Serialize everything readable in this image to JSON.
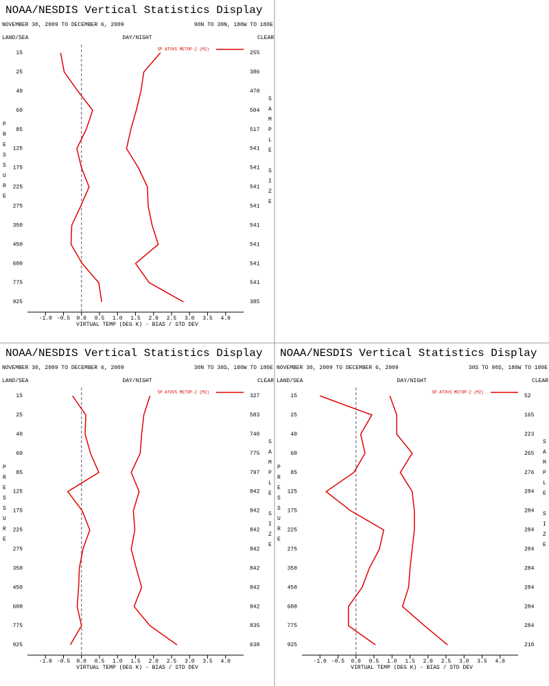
{
  "chart_data": [
    {
      "type": "line",
      "title": "NOAA/NESDIS Vertical Statistics Display",
      "date_range": "NOVEMBER 30, 2009 TO DECEMBER 6, 2009",
      "region": "90N TO 30N, 180W TO 180E",
      "left_label": "LAND/SEA",
      "center_label": "DAY/NIGHT",
      "right_label": "CLEAR",
      "y_label": "PRESSURE",
      "y2_label": "SAMPLE SIZE",
      "x_label": "VIRTUAL TEMP (DEG K) - BIAS / STD DEV",
      "legend": "SP ATOVS METOP-2 (M2)",
      "color": "#e00000",
      "categories": [
        "15",
        "25",
        "40",
        "60",
        "85",
        "125",
        "175",
        "225",
        "275",
        "350",
        "450",
        "600",
        "775",
        "925"
      ],
      "sample_size": [
        255,
        386,
        470,
        504,
        517,
        541,
        541,
        541,
        541,
        541,
        541,
        541,
        541,
        385
      ],
      "series": [
        {
          "values": [
            -0.58,
            -0.48,
            -0.1,
            0.31,
            0.13,
            -0.13,
            0.0,
            0.21,
            -0.02,
            -0.27,
            -0.29,
            0.02,
            0.48,
            0.56
          ]
        },
        {
          "values": [
            2.19,
            1.73,
            1.65,
            1.52,
            1.37,
            1.25,
            1.58,
            1.83,
            1.85,
            1.96,
            2.13,
            1.5,
            1.88,
            2.83
          ]
        }
      ],
      "xlim": [
        -1.5,
        4.5
      ],
      "xticks": [
        {
          "value": -1,
          "label": "-1.0"
        },
        {
          "value": -0.5,
          "label": "-0.5"
        },
        {
          "value": 0,
          "label": "0.0"
        },
        {
          "value": 0.5,
          "label": "0.5"
        },
        {
          "value": 1,
          "label": "1.0"
        },
        {
          "value": 1.5,
          "label": "1.5"
        },
        {
          "value": 2,
          "label": "2.0"
        },
        {
          "value": 2.5,
          "label": "2.5"
        },
        {
          "value": 3,
          "label": "3.0"
        },
        {
          "value": 3.5,
          "label": "3.5"
        },
        {
          "value": 4,
          "label": "4.0"
        }
      ]
    },
    {
      "type": "line",
      "title": "NOAA/NESDIS Vertical Statistics Display",
      "date_range": "NOVEMBER 30, 2009 TO DECEMBER 6, 2009",
      "region": "30N TO 30S, 180W TO 180E",
      "left_label": "LAND/SEA",
      "center_label": "DAY/NIGHT",
      "right_label": "CLEAR",
      "y_label": "PRESSURE",
      "y2_label": "SAMPLE SIZE",
      "x_label": "VIRTUAL TEMP (DEG K) - BIAS / STD DEV",
      "legend": "SP ATOVS METOP-2 (M2)",
      "color": "#e00000",
      "categories": [
        "15",
        "25",
        "40",
        "60",
        "85",
        "125",
        "175",
        "225",
        "275",
        "350",
        "450",
        "600",
        "775",
        "925"
      ],
      "sample_size": [
        327,
        583,
        740,
        775,
        797,
        842,
        842,
        842,
        842,
        842,
        842,
        842,
        835,
        638
      ],
      "series": [
        {
          "values": [
            -0.25,
            0.12,
            0.1,
            0.25,
            0.48,
            -0.38,
            0.02,
            0.23,
            0.04,
            -0.06,
            -0.08,
            -0.12,
            0.0,
            -0.31
          ]
        },
        {
          "values": [
            1.9,
            1.73,
            1.67,
            1.63,
            1.38,
            1.6,
            1.44,
            1.48,
            1.38,
            1.52,
            1.67,
            1.46,
            1.9,
            2.65
          ]
        }
      ],
      "xlim": [
        -1.5,
        4.5
      ],
      "xticks": [
        {
          "value": -1,
          "label": "-1.0"
        },
        {
          "value": -0.5,
          "label": "-0.5"
        },
        {
          "value": 0,
          "label": "0.0"
        },
        {
          "value": 0.5,
          "label": "0.5"
        },
        {
          "value": 1,
          "label": "1.0"
        },
        {
          "value": 1.5,
          "label": "1.5"
        },
        {
          "value": 2,
          "label": "2.0"
        },
        {
          "value": 2.5,
          "label": "2.5"
        },
        {
          "value": 3,
          "label": "3.0"
        },
        {
          "value": 3.5,
          "label": "3.5"
        },
        {
          "value": 4,
          "label": "4.0"
        }
      ]
    },
    {
      "type": "line",
      "title": "NOAA/NESDIS Vertical Statistics Display",
      "date_range": "NOVEMBER 30, 2009 TO DECEMBER 6, 2009",
      "region": "30S TO 90S, 180W TO 180E",
      "left_label": "LAND/SEA",
      "center_label": "DAY/NIGHT",
      "right_label": "CLEAR",
      "y_label": "PRESSURE",
      "y2_label": "SAMPLE SIZE",
      "x_label": "VIRTUAL TEMP (DEG K) - BIAS / STD DEV",
      "legend": "SP ATOVS METOP-2 (M2)",
      "color": "#e00000",
      "categories": [
        "15",
        "25",
        "40",
        "60",
        "85",
        "125",
        "175",
        "225",
        "275",
        "350",
        "450",
        "600",
        "775",
        "925"
      ],
      "sample_size": [
        52,
        165,
        223,
        265,
        276,
        284,
        284,
        284,
        284,
        284,
        284,
        284,
        284,
        210
      ],
      "series": [
        {
          "values": [
            -1.0,
            0.44,
            0.13,
            0.25,
            -0.06,
            -0.83,
            -0.15,
            0.77,
            0.65,
            0.37,
            0.17,
            -0.21,
            -0.21,
            0.54
          ]
        },
        {
          "values": [
            0.94,
            1.13,
            1.13,
            1.56,
            1.23,
            1.56,
            1.62,
            1.62,
            1.56,
            1.5,
            1.46,
            1.29,
            1.9,
            2.54
          ]
        }
      ],
      "xlim": [
        -1.5,
        4.5
      ],
      "xticks": [
        {
          "value": -1,
          "label": "-1.0"
        },
        {
          "value": -0.5,
          "label": "-0.5"
        },
        {
          "value": 0,
          "label": "0.0"
        },
        {
          "value": 0.5,
          "label": "0.5"
        },
        {
          "value": 1,
          "label": "1.0"
        },
        {
          "value": 1.5,
          "label": "1.5"
        },
        {
          "value": 2,
          "label": "2.0"
        },
        {
          "value": 2.5,
          "label": "2.5"
        },
        {
          "value": 3,
          "label": "3.0"
        },
        {
          "value": 3.5,
          "label": "3.5"
        },
        {
          "value": 4,
          "label": "4.0"
        }
      ]
    }
  ]
}
